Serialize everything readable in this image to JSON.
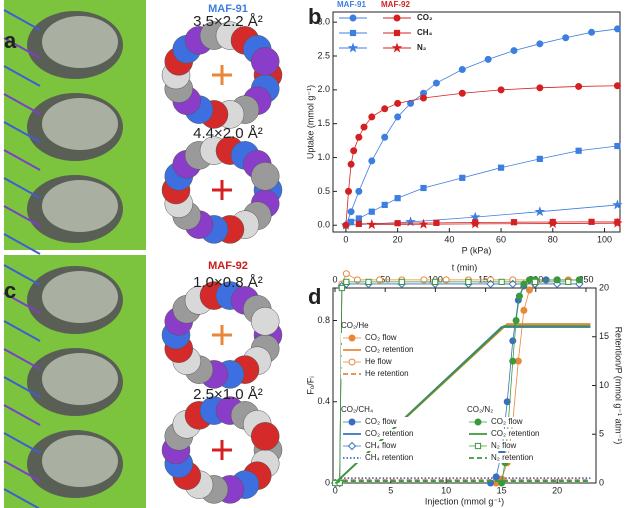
{
  "panel_labels": [
    "a",
    "b",
    "c",
    "d"
  ],
  "structures": [
    {
      "name": "MAF-91",
      "pores": [
        "3.5×2.2 Å²",
        "4.4×2.0 Å²"
      ]
    },
    {
      "name": "MAF-92",
      "pores": [
        "1.0×0.8 Å²",
        "2.5×1.0 Å²"
      ]
    }
  ],
  "chart_data": [
    {
      "type": "line",
      "xlabel": "P (kPa)",
      "ylabel": "Uptake (mmol g⁻¹)",
      "xlim": [
        -5,
        106
      ],
      "ylim": [
        -0.1,
        3.15
      ],
      "xticks": [
        0,
        20,
        40,
        60,
        80,
        100
      ],
      "yticks": [
        {
          "value": 0,
          "label": "0.0"
        },
        0.5,
        {
          "value": 1,
          "label": "1.0"
        },
        1.5,
        {
          "value": 2,
          "label": "2.0"
        },
        2.5,
        {
          "value": 3,
          "label": "3.0"
        }
      ],
      "gases": [
        "CO₂",
        "CH₄",
        "N₂"
      ],
      "groups": [
        {
          "name": "MAF-91",
          "color": "#3d7fe0",
          "series": [
            {
              "marker": "circle",
              "x": [
                0,
                2,
                5,
                10,
                15,
                20,
                25,
                30,
                35,
                45,
                55,
                65,
                75,
                85,
                95,
                105
              ],
              "values": [
                0,
                0.2,
                0.5,
                0.95,
                1.3,
                1.6,
                1.8,
                1.95,
                2.1,
                2.3,
                2.45,
                2.58,
                2.68,
                2.77,
                2.85,
                2.9
              ]
            },
            {
              "marker": "square",
              "x": [
                2,
                5,
                10,
                15,
                20,
                30,
                45,
                60,
                75,
                90,
                105
              ],
              "values": [
                0.05,
                0.1,
                0.2,
                0.3,
                0.4,
                0.55,
                0.7,
                0.85,
                0.98,
                1.1,
                1.17
              ]
            },
            {
              "marker": "star",
              "x": [
                0,
                25,
                50,
                75,
                105
              ],
              "values": [
                0,
                0.05,
                0.12,
                0.2,
                0.3
              ]
            }
          ]
        },
        {
          "name": "MAF-92",
          "color": "#d42020",
          "series": [
            {
              "marker": "circle",
              "x": [
                0,
                1,
                2,
                3,
                5,
                7,
                10,
                15,
                20,
                30,
                45,
                60,
                75,
                90,
                105
              ],
              "values": [
                0,
                0.5,
                0.9,
                1.1,
                1.3,
                1.45,
                1.6,
                1.72,
                1.8,
                1.88,
                1.95,
                2.0,
                2.03,
                2.05,
                2.06
              ]
            },
            {
              "marker": "square",
              "x": [
                5,
                20,
                35,
                50,
                65,
                80,
                95,
                105
              ],
              "values": [
                0.02,
                0.03,
                0.035,
                0.04,
                0.045,
                0.048,
                0.05,
                0.05
              ]
            },
            {
              "marker": "star",
              "x": [
                10,
                30,
                50,
                80,
                105
              ],
              "values": [
                0.01,
                0.015,
                0.02,
                0.025,
                0.03
              ]
            }
          ]
        }
      ]
    },
    {
      "type": "line",
      "xlabel": "Injection (mmol g⁻¹)",
      "x2label": "t (min)",
      "ylabel": "Fₒ/Fᵢ",
      "y2label": "Retention/P (mmol g⁻¹ atm⁻¹)",
      "xlim": [
        -0.2,
        23.5
      ],
      "x2lim": [
        -2,
        260
      ],
      "ylim": [
        0,
        0.96
      ],
      "y2lim": [
        0,
        20
      ],
      "xticks": [
        0,
        5,
        10,
        15,
        20
      ],
      "x2ticks": [
        0,
        50,
        100,
        150,
        200,
        250
      ],
      "yticks": [
        0,
        0.4,
        0.8
      ],
      "y2ticks": [
        0,
        5,
        10,
        15,
        20
      ],
      "groups": [
        {
          "name": "CO₂/He",
          "color": "#e8873a",
          "series": [
            {
              "name": "CO₂ flow",
              "marker": "circle",
              "x": [
                14.5,
                15,
                15.5,
                16,
                16.5,
                17,
                17.5,
                18,
                19,
                20,
                21,
                22
              ],
              "values": [
                0,
                0.02,
                0.1,
                0.3,
                0.6,
                0.85,
                0.95,
                0.98,
                1.0,
                1.0,
                1.0,
                1.0
              ]
            },
            {
              "name": "CO₂ retention",
              "axis": "y2",
              "x": [
                0,
                15.5,
                23
              ],
              "values": [
                0,
                16.3,
                16.3
              ]
            },
            {
              "name": "He flow",
              "marker": "circle",
              "hollow": true,
              "x": [
                0,
                0.4,
                0.6,
                1,
                2,
                4,
                6,
                8,
                10,
                12,
                14,
                16,
                18,
                20,
                22
              ],
              "values": [
                0,
                0,
                0.98,
                1.03,
                1.0,
                1.0,
                1.0,
                1.0,
                1.0,
                1.0,
                1.0,
                1.0,
                1.0,
                1.0,
                1.0
              ]
            },
            {
              "name": "He   retention",
              "axis": "y2",
              "dash": "dashed",
              "x": [
                0,
                0.5,
                23
              ],
              "values": [
                0,
                0.3,
                0.3
              ]
            }
          ]
        },
        {
          "name": "CO₂/CH₄",
          "color": "#3a6fbf",
          "series": [
            {
              "name": "CO₂ flow",
              "marker": "circle",
              "x": [
                14,
                14.5,
                15,
                15.5,
                16,
                16.5,
                17,
                18,
                19,
                20,
                22
              ],
              "values": [
                0,
                0.03,
                0.15,
                0.4,
                0.7,
                0.9,
                0.97,
                1.0,
                1.0,
                1.0,
                1.0
              ]
            },
            {
              "name": "CO₂ retention",
              "axis": "y2",
              "x": [
                0,
                15,
                23
              ],
              "values": [
                0,
                16,
                16
              ]
            },
            {
              "name": "CH₄ flow",
              "marker": "diamond",
              "hollow": true,
              "x": [
                0,
                0.4,
                0.6,
                1,
                3,
                6,
                9,
                12,
                14,
                16,
                18,
                20,
                22
              ],
              "values": [
                0,
                0,
                0.97,
                0.98,
                0.98,
                0.98,
                0.98,
                0.98,
                0.98,
                0.98,
                0.98,
                0.98,
                0.98
              ]
            },
            {
              "name": "CH₄ retention",
              "axis": "y2",
              "dash": "dotted",
              "x": [
                0,
                0.6,
                23
              ],
              "values": [
                0,
                0.5,
                0.5
              ]
            }
          ]
        },
        {
          "name": "CO₂/N₂",
          "color": "#3a9a3a",
          "series": [
            {
              "name": "CO₂ flow",
              "marker": "circle",
              "x": [
                15,
                15.3,
                15.6,
                16,
                16.3,
                16.6,
                17,
                17.5,
                18,
                20,
                22
              ],
              "values": [
                0,
                0.1,
                0.3,
                0.6,
                0.8,
                0.92,
                0.98,
                1.0,
                1.0,
                1.0,
                1.0
              ]
            },
            {
              "name": "CO₂ retention",
              "axis": "y2",
              "x": [
                0,
                15.2,
                23
              ],
              "values": [
                0,
                16.1,
                16.1
              ]
            },
            {
              "name": "N₂ flow",
              "marker": "square",
              "hollow": true,
              "x": [
                0,
                0.4,
                0.6,
                1,
                3,
                6,
                9,
                12,
                15,
                18,
                21
              ],
              "values": [
                0,
                0,
                0.96,
                0.99,
                0.99,
                0.99,
                0.99,
                0.99,
                0.99,
                0.99,
                0.99
              ]
            },
            {
              "name": "N₂  retention",
              "axis": "y2",
              "dash": "dashed",
              "x": [
                0,
                0.5,
                23
              ],
              "values": [
                0,
                0.2,
                0.2
              ]
            }
          ]
        }
      ]
    }
  ]
}
